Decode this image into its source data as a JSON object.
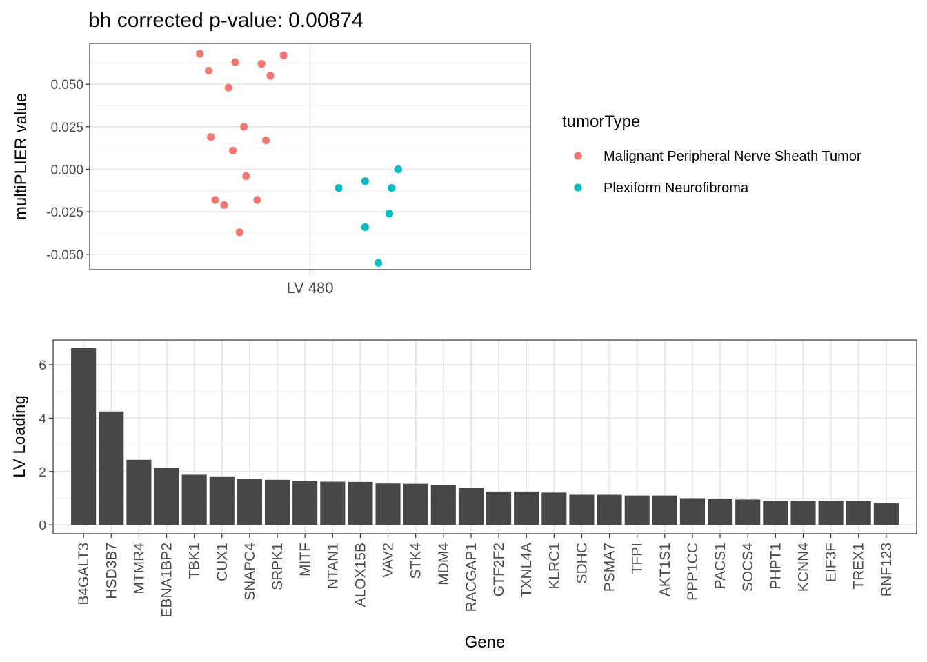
{
  "chart_data": [
    {
      "type": "scatter",
      "title": "bh corrected p-value: 0.00874",
      "ylabel": "multiPLIER value",
      "xlabel": "",
      "categories": [
        "LV 480"
      ],
      "ylim": [
        -0.059,
        0.074
      ],
      "yticks": [
        {
          "value": 0.05,
          "label": "0.050"
        },
        {
          "value": 0.025,
          "label": "0.025"
        },
        {
          "value": 0.0,
          "label": "0.000"
        },
        {
          "value": -0.025,
          "label": "-0.025"
        },
        {
          "value": -0.05,
          "label": "-0.050"
        }
      ],
      "grid": true,
      "legend": {
        "title": "tumorType",
        "placement": "right",
        "entries": [
          {
            "name": "Malignant Peripheral Nerve Sheath Tumor",
            "color": "#F8766D"
          },
          {
            "name": "Plexiform Neurofibroma",
            "color": "#00BFC4"
          }
        ]
      },
      "series": [
        {
          "name": "Malignant Peripheral Nerve Sheath Tumor",
          "color": "#F8766D",
          "points": [
            {
              "jitter": -0.5,
              "y": 0.068
            },
            {
              "jitter": -0.46,
              "y": 0.058
            },
            {
              "jitter": -0.34,
              "y": 0.063
            },
            {
              "jitter": -0.22,
              "y": 0.062
            },
            {
              "jitter": -0.12,
              "y": 0.067
            },
            {
              "jitter": -0.18,
              "y": 0.055
            },
            {
              "jitter": -0.37,
              "y": 0.048
            },
            {
              "jitter": -0.3,
              "y": 0.025
            },
            {
              "jitter": -0.45,
              "y": 0.019
            },
            {
              "jitter": -0.2,
              "y": 0.017
            },
            {
              "jitter": -0.35,
              "y": 0.011
            },
            {
              "jitter": -0.29,
              "y": -0.004
            },
            {
              "jitter": -0.43,
              "y": -0.018
            },
            {
              "jitter": -0.39,
              "y": -0.021
            },
            {
              "jitter": -0.24,
              "y": -0.018
            },
            {
              "jitter": -0.32,
              "y": -0.037
            }
          ]
        },
        {
          "name": "Plexiform Neurofibroma",
          "color": "#00BFC4",
          "points": [
            {
              "jitter": 0.4,
              "y": 0.0
            },
            {
              "jitter": 0.13,
              "y": -0.011
            },
            {
              "jitter": 0.25,
              "y": -0.007
            },
            {
              "jitter": 0.37,
              "y": -0.011
            },
            {
              "jitter": 0.36,
              "y": -0.026
            },
            {
              "jitter": 0.25,
              "y": -0.034
            },
            {
              "jitter": 0.31,
              "y": -0.055
            }
          ]
        }
      ]
    },
    {
      "type": "bar",
      "title": "",
      "xlabel": "Gene",
      "ylabel": "LV Loading",
      "ylim": [
        -0.33,
        6.93
      ],
      "yticks": [
        {
          "value": 0,
          "label": "0"
        },
        {
          "value": 2,
          "label": "2"
        },
        {
          "value": 4,
          "label": "4"
        },
        {
          "value": 6,
          "label": "6"
        }
      ],
      "grid": true,
      "bar_color": "#474747",
      "categories": [
        "B4GALT3",
        "HSD3B7",
        "MTMR4",
        "EBNA1BP2",
        "TBK1",
        "CUX1",
        "SNAPC4",
        "SRPK1",
        "MITF",
        "NTAN1",
        "ALOX15B",
        "VAV2",
        "STK4",
        "MDM4",
        "RACGAP1",
        "GTF2F2",
        "TXNL4A",
        "KLRC1",
        "SDHC",
        "PSMA7",
        "TFPI",
        "AKT1S1",
        "PPP1CC",
        "PACS1",
        "SOCS4",
        "PHPT1",
        "KCNN4",
        "EIF3F",
        "TREX1",
        "RNF123"
      ],
      "values": [
        6.62,
        4.25,
        2.44,
        2.13,
        1.88,
        1.82,
        1.72,
        1.69,
        1.64,
        1.62,
        1.61,
        1.55,
        1.54,
        1.48,
        1.38,
        1.25,
        1.25,
        1.21,
        1.13,
        1.13,
        1.1,
        1.1,
        1.0,
        0.97,
        0.95,
        0.9,
        0.9,
        0.9,
        0.89,
        0.82
      ]
    }
  ]
}
